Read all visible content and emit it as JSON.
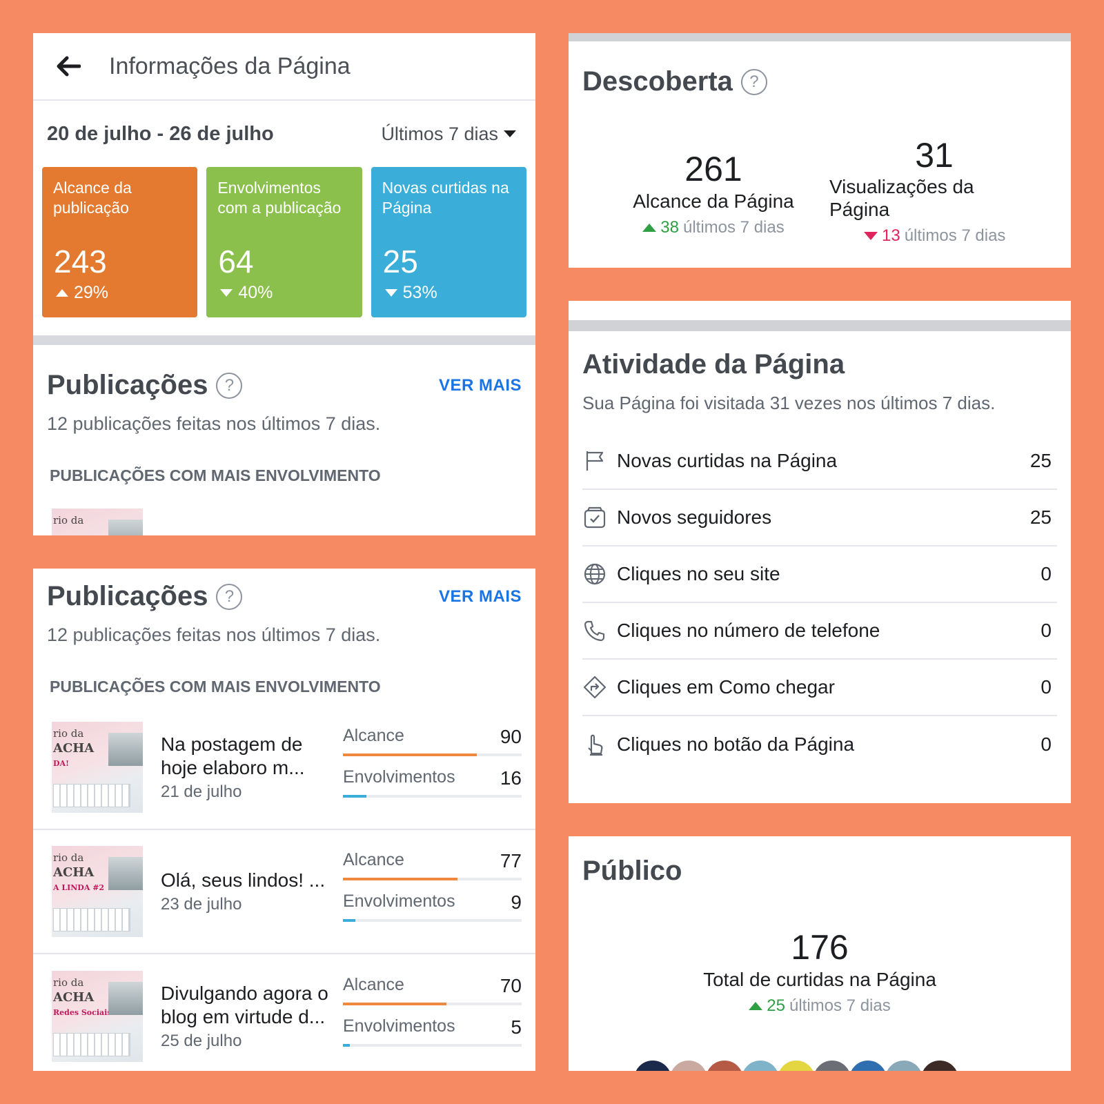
{
  "insights": {
    "title": "Informações da Página",
    "date_range": "20 de julho - 26 de julho",
    "period_select": "Últimos 7 dias",
    "tiles": [
      {
        "label": "Alcance da publicação",
        "value": "243",
        "delta": "29%",
        "direction": "up",
        "color": "#e37a2f"
      },
      {
        "label": "Envolvimentos com a publicação",
        "value": "64",
        "delta": "40%",
        "direction": "down",
        "color": "#8bc04c"
      },
      {
        "label": "Novas curtidas na Página",
        "value": "25",
        "delta": "53%",
        "direction": "down",
        "color": "#3aaed8"
      }
    ]
  },
  "publicacoes": {
    "title": "Publicações",
    "help": "?",
    "see_more": "VER MAIS",
    "subtitle": "12 publicações feitas nos últimos 7 dias.",
    "caps": "PUBLICAÇÕES COM MAIS ENVOLVIMENTO",
    "reach_label": "Alcance",
    "engagement_label": "Envolvimentos",
    "reach_color": "#f0883e",
    "engagement_color": "#3aaed8",
    "posts": [
      {
        "title": "Na postagem de hoje elaboro m...",
        "date": "21 de julho",
        "reach": 90,
        "engagement": 16,
        "reach_fraction": 0.75,
        "engagement_fraction": 0.13,
        "thumb_text": [
          "rio da",
          "ACHA",
          "DA!"
        ]
      },
      {
        "title": "Olá, seus lindos! ...",
        "date": "23 de julho",
        "reach": 77,
        "engagement": 9,
        "reach_fraction": 0.64,
        "engagement_fraction": 0.07,
        "thumb_text": [
          "rio da",
          "ACHA",
          "A LINDA #2"
        ]
      },
      {
        "title": "Divulgando agora o blog em virtude d...",
        "date": "25 de julho",
        "reach": 70,
        "engagement": 5,
        "reach_fraction": 0.58,
        "engagement_fraction": 0.04,
        "thumb_text": [
          "rio da",
          "ACHA",
          "Redes Sociais"
        ]
      }
    ]
  },
  "descoberta": {
    "title": "Descoberta",
    "help": "?",
    "metrics": [
      {
        "value": "261",
        "label": "Alcance da Página",
        "delta": "38",
        "delta_text": "últimos 7 dias",
        "direction": "up"
      },
      {
        "value": "31",
        "label": "Visualizações da Página",
        "delta": "13",
        "delta_text": "últimos 7 dias",
        "direction": "down"
      }
    ]
  },
  "atividade": {
    "title": "Atividade da Página",
    "subtitle": "Sua Página foi visitada 31 vezes nos últimos 7 dias.",
    "rows": [
      {
        "icon": "flag-icon",
        "label": "Novas curtidas na Página",
        "value": "25"
      },
      {
        "icon": "followers-icon",
        "label": "Novos seguidores",
        "value": "25"
      },
      {
        "icon": "globe-icon",
        "label": "Cliques no seu site",
        "value": "0"
      },
      {
        "icon": "phone-icon",
        "label": "Cliques no número de telefone",
        "value": "0"
      },
      {
        "icon": "directions-icon",
        "label": "Cliques em Como chegar",
        "value": "0"
      },
      {
        "icon": "tap-icon",
        "label": "Cliques no botão da Página",
        "value": "0"
      }
    ]
  },
  "publico": {
    "title": "Público",
    "total": "176",
    "total_label": "Total de curtidas na Página",
    "delta": "25",
    "delta_text": "últimos 7 dias"
  }
}
